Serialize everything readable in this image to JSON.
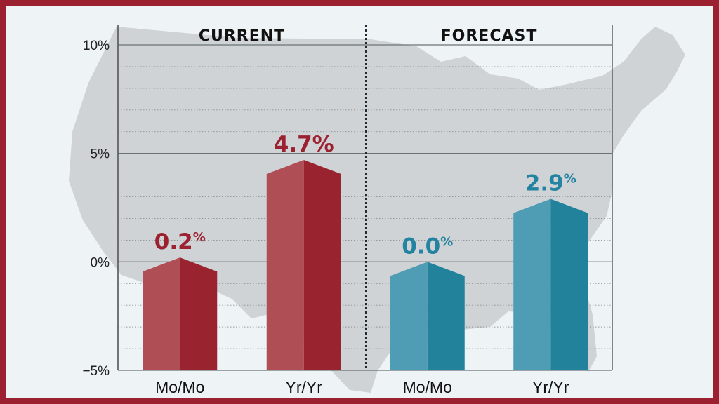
{
  "chart_data": {
    "type": "bar",
    "ylim": [
      -5,
      10
    ],
    "yticks": [
      {
        "value": 10,
        "label": "10%"
      },
      {
        "value": 5,
        "label": "5%"
      },
      {
        "value": 0,
        "label": "0%"
      },
      {
        "value": -5,
        "label": "−5%"
      }
    ],
    "minor_grid_step": 1,
    "grid": true,
    "sections": [
      {
        "title": "CURRENT",
        "color_light": "#b04e56",
        "color_dark": "#99232e",
        "label_color": "#9b2030",
        "bars": [
          {
            "category": "Mo/Mo",
            "value": 0.2,
            "number_text": "0.2",
            "unit_text": "%"
          },
          {
            "category": "Yr/Yr",
            "value": 4.7,
            "number_text": "4.7%",
            "unit_text": ""
          }
        ]
      },
      {
        "title": "FORECAST",
        "color_light": "#4f9db5",
        "color_dark": "#23829b",
        "label_color": "#2383a0",
        "bars": [
          {
            "category": "Mo/Mo",
            "value": 0.0,
            "number_text": "0.0",
            "unit_text": "%"
          },
          {
            "category": "Yr/Yr",
            "value": 2.9,
            "number_text": "2.9",
            "unit_text": "%"
          }
        ]
      }
    ]
  },
  "colors": {
    "frame": "#9b2030",
    "background": "#eef3f6",
    "map": "#cfd3d6",
    "gridline": "#6b7378"
  },
  "background_icon": "usa-map-silhouette"
}
